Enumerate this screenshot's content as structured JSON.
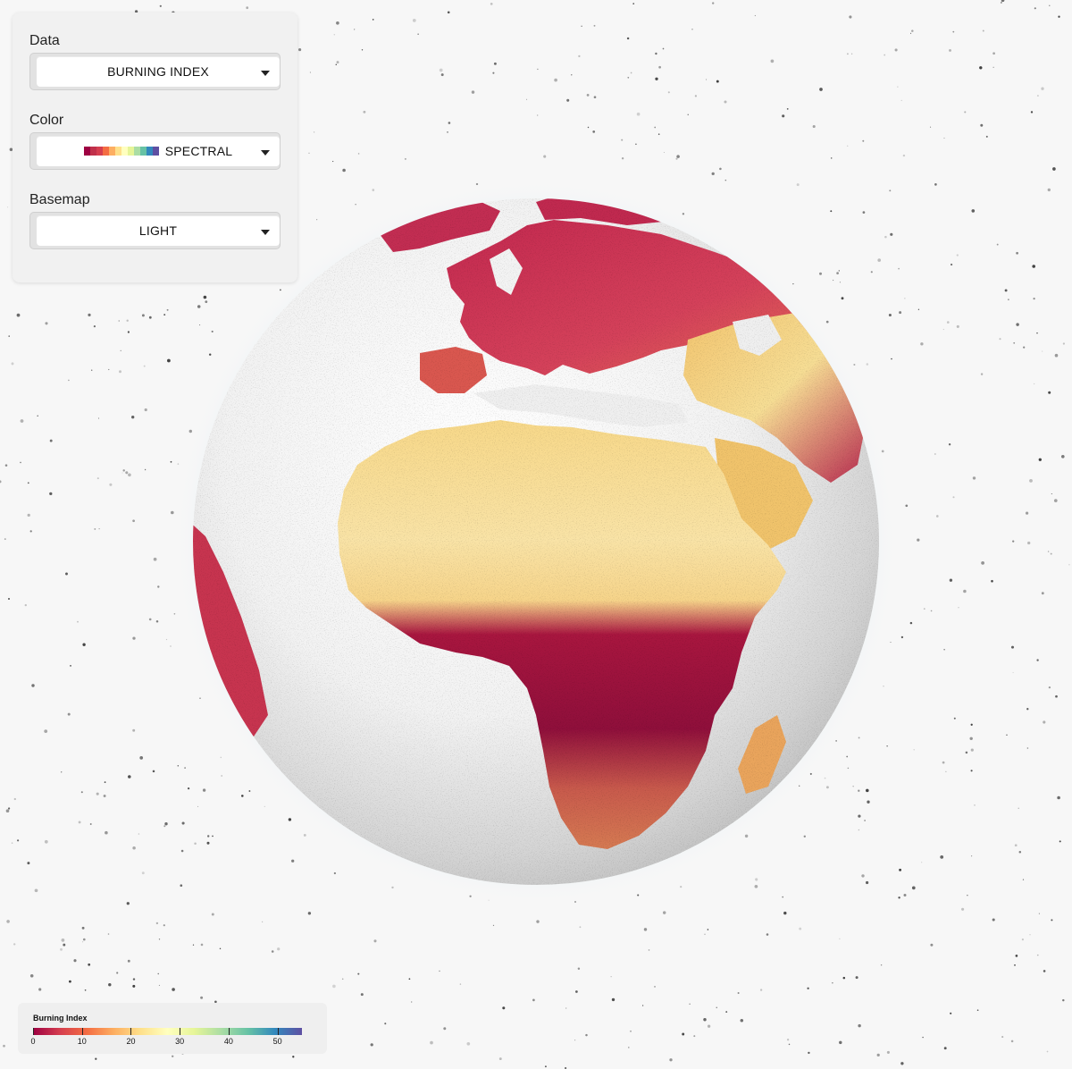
{
  "controls": {
    "data": {
      "label": "Data",
      "value": "BURNING INDEX"
    },
    "color": {
      "label": "Color",
      "value": "SPECTRAL",
      "swatches": [
        "#9e0142",
        "#c0304a",
        "#d53e4f",
        "#f46d43",
        "#fdae61",
        "#fee08b",
        "#ffffbf",
        "#e6f598",
        "#abdda4",
        "#66c2a5",
        "#3288bd",
        "#5e4fa2"
      ]
    },
    "basemap": {
      "label": "Basemap",
      "value": "LIGHT"
    }
  },
  "legend": {
    "title": "Burning Index",
    "ticks": [
      "0",
      "10",
      "20",
      "30",
      "40",
      "50"
    ],
    "min": 0,
    "max": 55,
    "colors": [
      "#9e0142",
      "#d53e4f",
      "#f46d43",
      "#fdae61",
      "#fee08b",
      "#ffffbf",
      "#e6f598",
      "#abdda4",
      "#66c2a5",
      "#3288bd",
      "#5e4fa2"
    ]
  }
}
